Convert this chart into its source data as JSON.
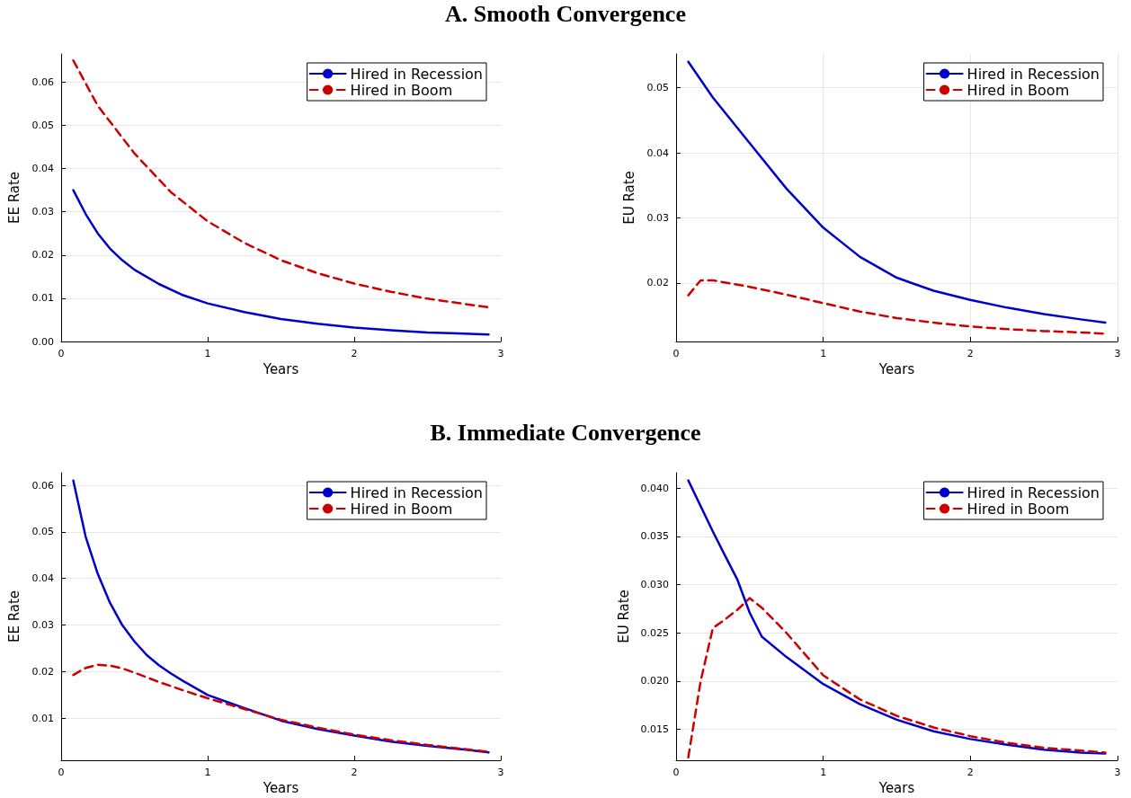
{
  "chart_data": [
    {
      "type": "line",
      "title": "A. Smooth Convergence",
      "xlabel": "Years",
      "ylabel": "EE Rate",
      "xlim": [
        0,
        3
      ],
      "xticks": [
        0,
        1,
        2,
        3
      ],
      "ylim": [
        0,
        0.0665
      ],
      "yticks": [
        {
          "value": 0,
          "label": "0.00"
        },
        {
          "value": 0.01,
          "label": "0.01"
        },
        {
          "value": 0.02,
          "label": "0.02"
        },
        {
          "value": 0.03,
          "label": "0.03"
        },
        {
          "value": 0.04,
          "label": "0.04"
        },
        {
          "value": 0.05,
          "label": "0.05"
        },
        {
          "value": 0.06,
          "label": "0.06"
        }
      ],
      "grid": "y",
      "legend": "top right",
      "marker": "none",
      "series": [
        {
          "name": "Hired in Recession",
          "color": "#0000cc",
          "line_style": "solid",
          "x": [
            0.083,
            0.167,
            0.25,
            0.333,
            0.417,
            0.5,
            0.667,
            0.833,
            1,
            1.25,
            1.5,
            1.75,
            2,
            2.25,
            2.5,
            2.75,
            2.917
          ],
          "values": [
            0.035,
            0.0295,
            0.025,
            0.0215,
            0.0188,
            0.0166,
            0.0133,
            0.0107,
            0.0088,
            0.0068,
            0.0052,
            0.0041,
            0.0032,
            0.0026,
            0.0021,
            0.0018,
            0.0016
          ]
        },
        {
          "name": "Hired in Boom",
          "color": "#cc0000",
          "line_style": "dashed",
          "x": [
            0.083,
            0.25,
            0.5,
            0.75,
            1,
            1.25,
            1.5,
            1.75,
            2,
            2.25,
            2.5,
            2.75,
            2.917
          ],
          "values": [
            0.065,
            0.0545,
            0.0435,
            0.0345,
            0.0278,
            0.0228,
            0.0188,
            0.0158,
            0.0134,
            0.0115,
            0.0099,
            0.0087,
            0.0079
          ]
        }
      ]
    },
    {
      "type": "line",
      "xlabel": "Years",
      "ylabel": "EU Rate",
      "xlim": [
        0,
        3
      ],
      "xticks": [
        0,
        1,
        2,
        3
      ],
      "ylim": [
        0.011,
        0.0552
      ],
      "yticks": [
        {
          "value": 0.02,
          "label": "0.02"
        },
        {
          "value": 0.03,
          "label": "0.03"
        },
        {
          "value": 0.04,
          "label": "0.04"
        },
        {
          "value": 0.05,
          "label": "0.05"
        }
      ],
      "grid": true,
      "legend": "top right",
      "marker": "none",
      "series": [
        {
          "name": "Hired in Recession",
          "color": "#0000cc",
          "line_style": "solid",
          "x": [
            0.083,
            0.25,
            0.5,
            0.75,
            1,
            1.25,
            1.5,
            1.75,
            2,
            2.25,
            2.5,
            2.75,
            2.917
          ],
          "values": [
            0.054,
            0.0485,
            0.0415,
            0.0345,
            0.0285,
            0.024,
            0.0208,
            0.0188,
            0.0174,
            0.0162,
            0.0152,
            0.0144,
            0.0139
          ]
        },
        {
          "name": "Hired in Boom",
          "color": "#cc0000",
          "line_style": "dashed",
          "x": [
            0.083,
            0.167,
            0.25,
            0.5,
            0.75,
            1,
            1.25,
            1.5,
            1.75,
            2,
            2.25,
            2.5,
            2.75,
            2.917
          ],
          "values": [
            0.0181,
            0.0204,
            0.0204,
            0.0194,
            0.0182,
            0.0169,
            0.0156,
            0.0146,
            0.0139,
            0.0133,
            0.0129,
            0.0126,
            0.0124,
            0.0122
          ]
        }
      ]
    },
    {
      "type": "line",
      "title": "B. Immediate Convergence",
      "xlabel": "Years",
      "ylabel": "EE Rate",
      "xlim": [
        0,
        3
      ],
      "xticks": [
        0,
        1,
        2,
        3
      ],
      "ylim": [
        0.001,
        0.0627
      ],
      "yticks": [
        {
          "value": 0.01,
          "label": "0.01"
        },
        {
          "value": 0.02,
          "label": "0.02"
        },
        {
          "value": 0.03,
          "label": "0.03"
        },
        {
          "value": 0.04,
          "label": "0.04"
        },
        {
          "value": 0.05,
          "label": "0.05"
        },
        {
          "value": 0.06,
          "label": "0.06"
        }
      ],
      "grid": "y",
      "legend": "top right",
      "marker": "none",
      "series": [
        {
          "name": "Hired in Recession",
          "color": "#0000cc",
          "line_style": "solid",
          "x": [
            0.083,
            0.167,
            0.25,
            0.333,
            0.417,
            0.5,
            0.583,
            0.667,
            0.75,
            0.833,
            1,
            1.25,
            1.5,
            1.75,
            2,
            2.25,
            2.5,
            2.75,
            2.917
          ],
          "values": [
            0.061,
            0.049,
            0.041,
            0.0348,
            0.03,
            0.0265,
            0.0236,
            0.0214,
            0.0196,
            0.018,
            0.015,
            0.0122,
            0.0095,
            0.0077,
            0.0063,
            0.005,
            0.0041,
            0.0033,
            0.0027
          ]
        },
        {
          "name": "Hired in Boom",
          "color": "#cc0000",
          "line_style": "dashed",
          "x": [
            0.083,
            0.167,
            0.25,
            0.333,
            0.417,
            0.5,
            0.667,
            0.833,
            1,
            1.25,
            1.5,
            1.75,
            2,
            2.25,
            2.5,
            2.75,
            2.917
          ],
          "values": [
            0.0193,
            0.0208,
            0.0215,
            0.0213,
            0.0207,
            0.0198,
            0.0178,
            0.016,
            0.0143,
            0.012,
            0.0097,
            0.008,
            0.0065,
            0.0053,
            0.0043,
            0.0034,
            0.0028
          ]
        }
      ]
    },
    {
      "type": "line",
      "xlabel": "Years",
      "ylabel": "EU Rate",
      "xlim": [
        0,
        3
      ],
      "xticks": [
        0,
        1,
        2,
        3
      ],
      "ylim": [
        0.0118,
        0.0416
      ],
      "yticks": [
        {
          "value": 0.015,
          "label": "0.015"
        },
        {
          "value": 0.02,
          "label": "0.020"
        },
        {
          "value": 0.025,
          "label": "0.025"
        },
        {
          "value": 0.03,
          "label": "0.030"
        },
        {
          "value": 0.035,
          "label": "0.035"
        },
        {
          "value": 0.04,
          "label": "0.040"
        }
      ],
      "grid": "y",
      "legend": "top right",
      "marker": "none",
      "series": [
        {
          "name": "Hired in Recession",
          "color": "#0000cc",
          "line_style": "solid",
          "x": [
            0.083,
            0.25,
            0.333,
            0.417,
            0.5,
            0.583,
            0.75,
            1,
            1.25,
            1.5,
            1.75,
            2,
            2.25,
            2.5,
            2.75,
            2.917
          ],
          "values": [
            0.0408,
            0.0355,
            0.033,
            0.0305,
            0.0271,
            0.0246,
            0.0225,
            0.0197,
            0.0176,
            0.016,
            0.0148,
            0.014,
            0.0134,
            0.0129,
            0.0126,
            0.0125
          ]
        },
        {
          "name": "Hired in Boom",
          "color": "#cc0000",
          "line_style": "dashed",
          "x": [
            0.083,
            0.167,
            0.25,
            0.333,
            0.417,
            0.5,
            0.583,
            0.75,
            1,
            1.25,
            1.5,
            1.75,
            2,
            2.25,
            2.5,
            2.75,
            2.917
          ],
          "values": [
            0.0121,
            0.02,
            0.0255,
            0.0264,
            0.0274,
            0.0286,
            0.0276,
            0.025,
            0.0206,
            0.0181,
            0.0164,
            0.0152,
            0.0143,
            0.0136,
            0.0131,
            0.0128,
            0.0126
          ]
        }
      ]
    }
  ]
}
